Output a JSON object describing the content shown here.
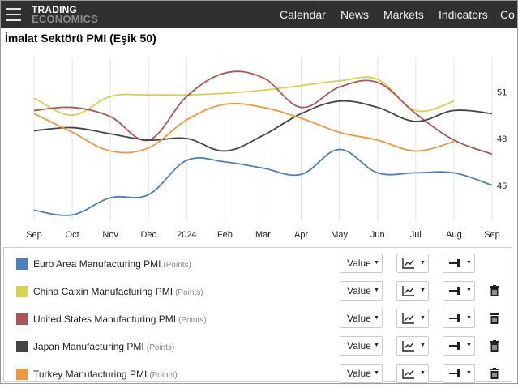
{
  "topbar": {
    "logo_line1": "TRADING",
    "logo_line2": "ECONOMICS",
    "nav": [
      "Calendar",
      "News",
      "Markets",
      "Indicators",
      "Co"
    ]
  },
  "title": "İmalat Sektörü PMI (Eşik 50)",
  "chart_data": {
    "type": "line",
    "categories": [
      "Sep",
      "Oct",
      "Nov",
      "Dec",
      "2024",
      "Feb",
      "Mar",
      "Apr",
      "May",
      "Jun",
      "Jul",
      "Aug",
      "Sep"
    ],
    "y_ticks": [
      45,
      48,
      51
    ],
    "ylim": [
      42.7,
      53.2
    ],
    "grid": "vertical",
    "series": [
      {
        "name": "Euro Area Manufacturing PMI",
        "unit": "(Points)",
        "color": "#4a7fc4",
        "values": [
          43.4,
          43.1,
          44.2,
          44.4,
          46.6,
          46.5,
          46.1,
          45.7,
          47.3,
          45.8,
          45.8,
          45.8,
          45.0
        ]
      },
      {
        "name": "China Caixin Manufacturing PMI",
        "unit": "(Points)",
        "color": "#d4d44a",
        "values": [
          50.6,
          49.5,
          50.7,
          50.8,
          50.8,
          50.9,
          51.1,
          51.4,
          51.7,
          51.8,
          49.8,
          50.4,
          null
        ]
      },
      {
        "name": "United States Manufacturing PMI",
        "unit": "(Points)",
        "color": "#b15554",
        "values": [
          49.8,
          50.0,
          49.4,
          47.9,
          50.7,
          52.2,
          51.9,
          50.0,
          51.3,
          51.6,
          49.6,
          47.9,
          47.0
        ]
      },
      {
        "name": "Japan Manufacturing PMI",
        "unit": "(Points)",
        "color": "#454545",
        "values": [
          48.5,
          48.7,
          48.3,
          47.9,
          48.0,
          47.2,
          48.2,
          49.6,
          50.4,
          50.0,
          49.1,
          49.8,
          49.6
        ]
      },
      {
        "name": "Turkey Manufacturing PMI",
        "unit": "(Points)",
        "color": "#f5963a",
        "values": [
          49.6,
          48.4,
          47.2,
          47.4,
          49.2,
          50.2,
          50.0,
          49.3,
          48.4,
          47.9,
          47.2,
          47.8,
          null
        ]
      }
    ]
  },
  "legend": {
    "value_label": "Value"
  },
  "icons": {
    "menu": "hamburger-icon",
    "chart_type": "line-chart-icon",
    "position": "axis-side-icon",
    "delete": "trash-icon",
    "caret": "caret-down-icon"
  }
}
